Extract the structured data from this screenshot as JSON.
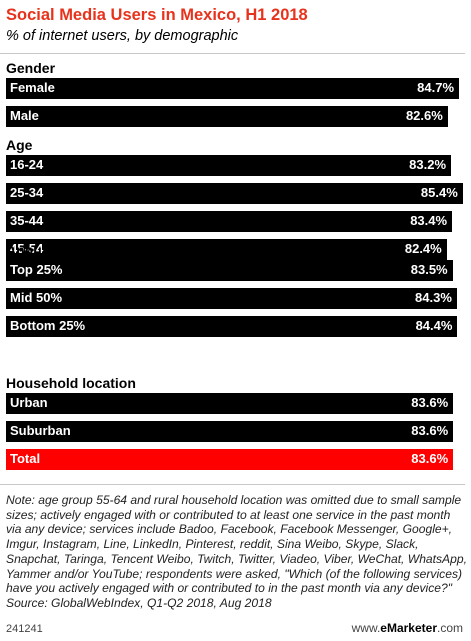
{
  "header": {
    "title": "Social Media Users in Mexico, H1 2018",
    "subtitle": "% of internet users, by demographic"
  },
  "chart_data": {
    "type": "bar",
    "orientation": "horizontal",
    "title": "Social Media Users in Mexico, H1 2018",
    "subtitle": "% of internet users, by demographic",
    "xlim": [
      0,
      86
    ],
    "grid": false,
    "legend": "none",
    "bar_color": "#000000",
    "highlight_color": "#ff0000",
    "groups": [
      {
        "name": "Gender",
        "items": [
          {
            "label": "Female",
            "value": 84.7,
            "display": "84.7%"
          },
          {
            "label": "Male",
            "value": 82.6,
            "display": "82.6%"
          }
        ]
      },
      {
        "name": "Age",
        "items": [
          {
            "label": "16-24",
            "value": 83.2,
            "display": "83.2%"
          },
          {
            "label": "25-34",
            "value": 85.4,
            "display": "85.4%"
          },
          {
            "label": "35-44",
            "value": 83.4,
            "display": "83.4%"
          },
          {
            "label": "45-54",
            "value": 82.4,
            "display": "82.4%"
          }
        ]
      },
      {
        "name": "Annual household income group",
        "items": [
          {
            "label": "Top 25%",
            "value": 83.5,
            "display": "83.5%"
          },
          {
            "label": "Mid 50%",
            "value": 84.3,
            "display": "84.3%"
          },
          {
            "label": "Bottom 25%",
            "value": 84.4,
            "display": "84.4%"
          }
        ]
      },
      {
        "name": "Household location",
        "items": [
          {
            "label": "Urban",
            "value": 83.6,
            "display": "83.6%"
          },
          {
            "label": "Suburban",
            "value": 83.6,
            "display": "83.6%"
          },
          {
            "label": "Total",
            "value": 83.6,
            "display": "83.6%",
            "highlight": true
          }
        ]
      }
    ]
  },
  "note": "Note: age group 55-64 and rural household location was omitted due to small sample sizes; actively engaged with or contributed to at least one service in the past month via any device; services include Badoo, Facebook, Facebook Messenger, Google+, Imgur, Instagram, Line, LinkedIn, Pinterest, reddit, Sina Weibo, Skype, Slack, Snapchat, Taringa, Tencent Weibo, Twitch, Twitter, Viadeo, Viber, WeChat, WhatsApp, Yammer and/or YouTube; respondents were asked, \"Which (of the following services) have you actively engaged with or contributed to in the past month via any device?\"",
  "source": "Source: GlobalWebIndex, Q1-Q2 2018, Aug 2018",
  "footer": {
    "chart_id": "241241",
    "brand_prefix": "www.",
    "brand_name": "eMarketer",
    "brand_suffix": ".com"
  }
}
